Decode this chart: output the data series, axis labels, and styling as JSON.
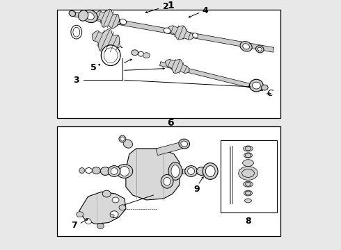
{
  "bg_color": "#e8e8e8",
  "box_color": "#ffffff",
  "line_color": "#000000",
  "gray_light": "#d0d0d0",
  "gray_mid": "#a0a0a0",
  "label1": "1",
  "label2": "2",
  "label3": "3",
  "label4": "4",
  "label5": "5",
  "label6": "6",
  "label7": "7",
  "label8": "8",
  "label9": "9",
  "labelC": "C",
  "fig_w": 4.9,
  "fig_h": 3.6,
  "dpi": 100
}
